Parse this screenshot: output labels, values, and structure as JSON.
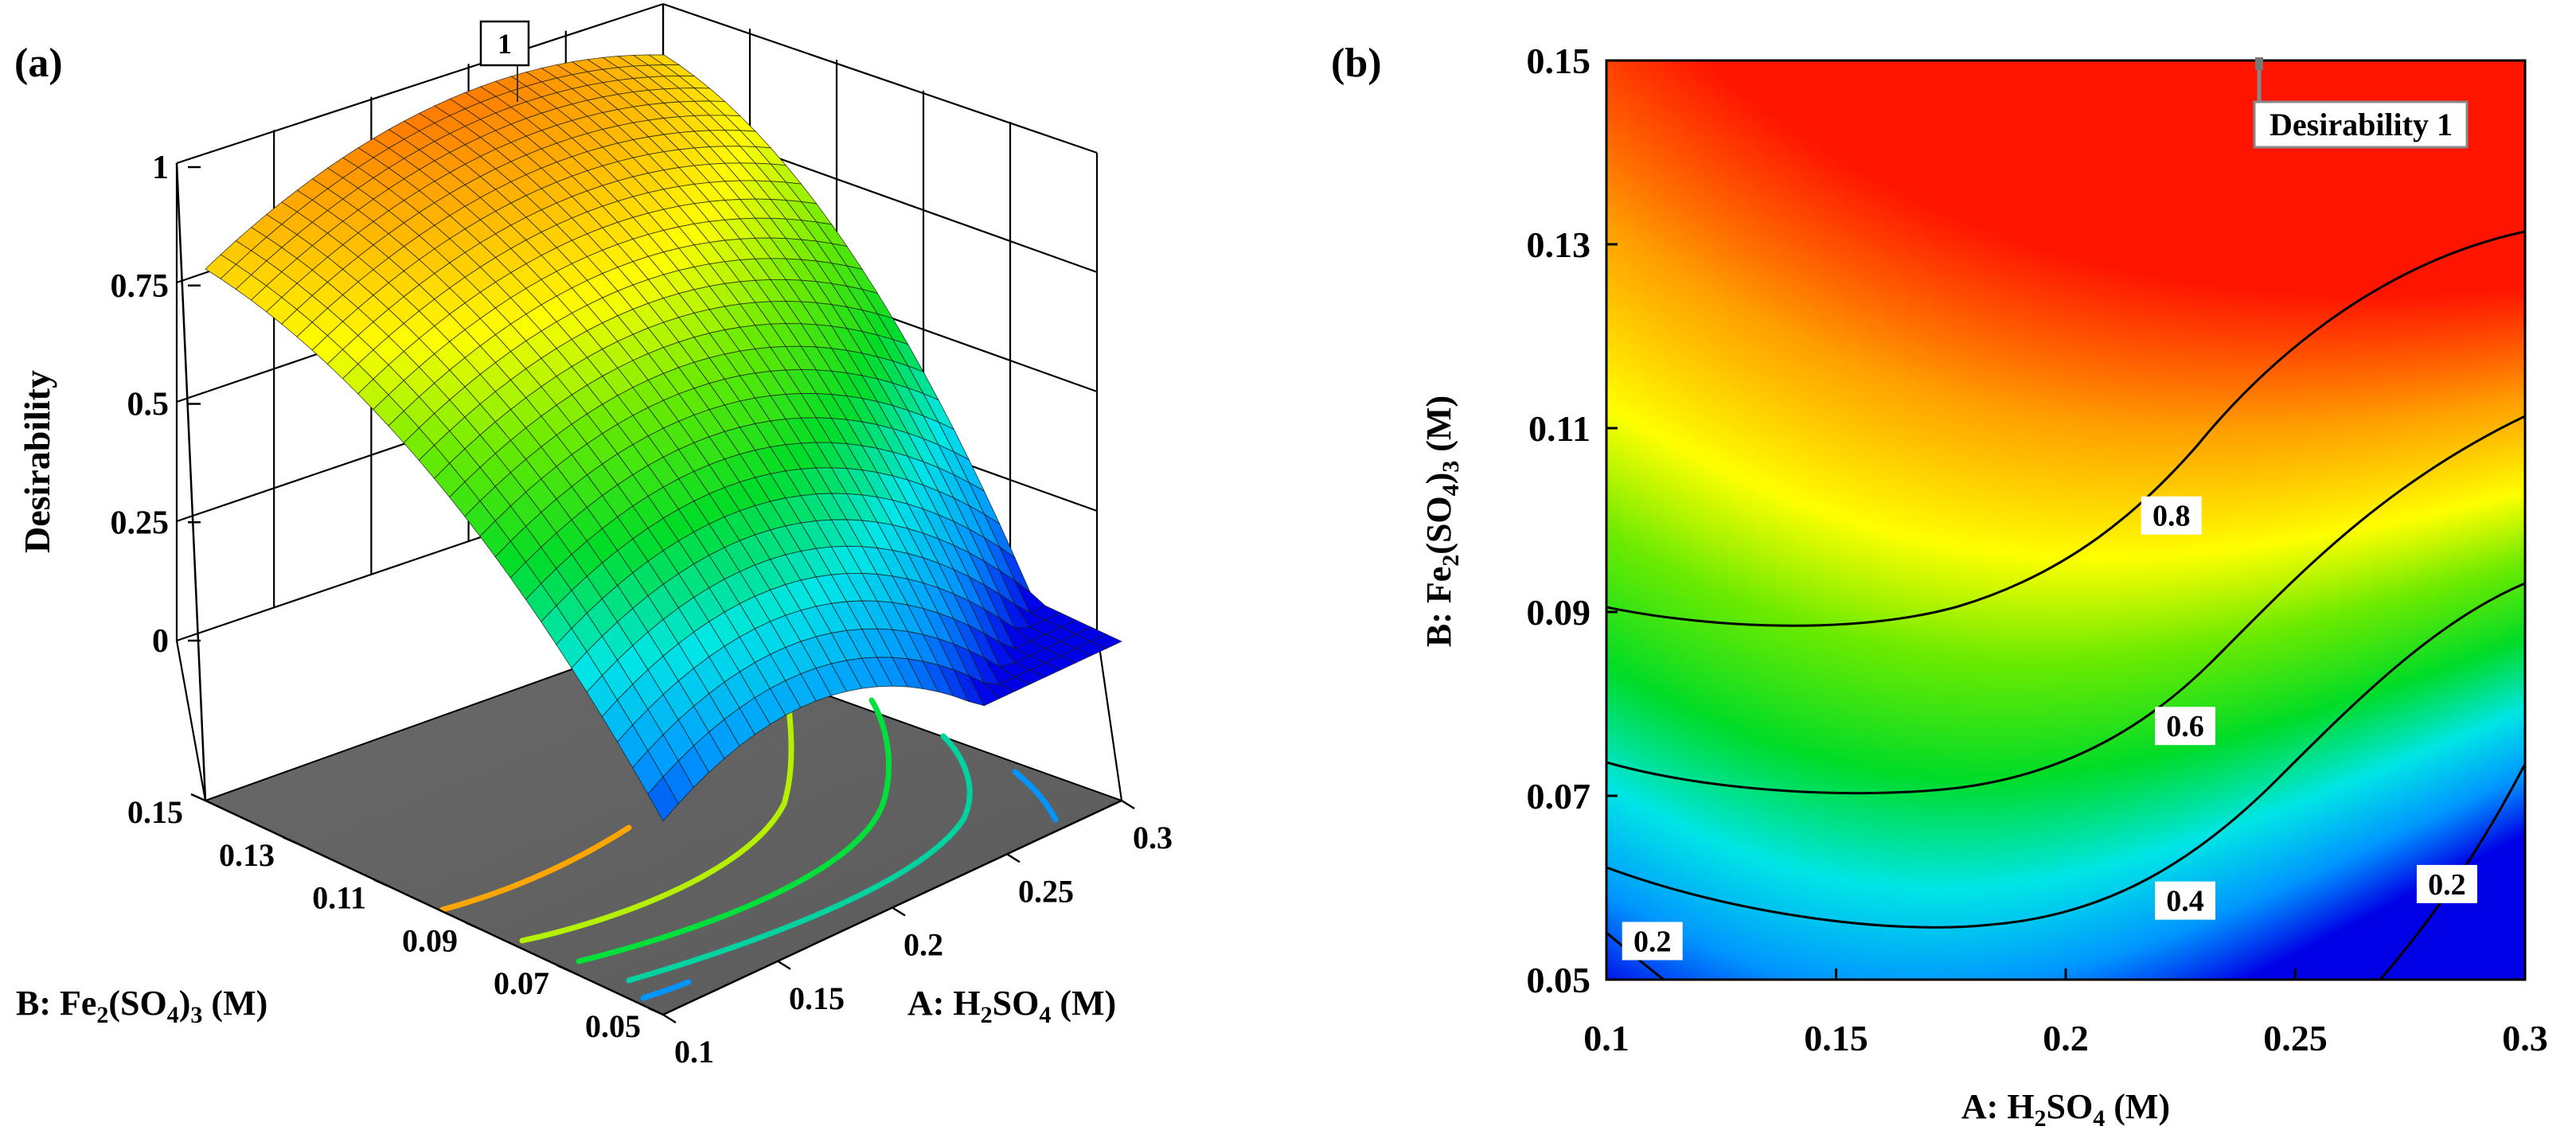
{
  "chart_data": [
    {
      "panel_label": "(a)",
      "type": "surface3d",
      "zlabel": "Desirability",
      "z_ticks": [
        "0",
        "0.25",
        "0.5",
        "0.75",
        "1"
      ],
      "zlim": [
        0,
        1
      ],
      "xlabel_parts": [
        "A: H",
        "2",
        "SO",
        "4",
        " (M)"
      ],
      "x_ticks": [
        "0.1",
        "0.15",
        "0.2",
        "0.25",
        "0.3"
      ],
      "xlim": [
        0.1,
        0.3
      ],
      "ylabel_parts": [
        "B: Fe",
        "2",
        "(SO",
        "4",
        ")",
        "3",
        " (M)"
      ],
      "y_ticks": [
        "0.05",
        "0.07",
        "0.09",
        "0.11",
        "0.13",
        "0.15"
      ],
      "ylim": [
        0.05,
        0.15
      ],
      "max_flag": "1",
      "floor_contour_levels": [
        0.2,
        0.4,
        0.6,
        0.8
      ]
    },
    {
      "panel_label": "(b)",
      "type": "contour",
      "xlabel_parts": [
        "A: H",
        "2",
        "SO",
        "4",
        " (M)"
      ],
      "x_ticks": [
        "0.1",
        "0.15",
        "0.2",
        "0.25",
        "0.3"
      ],
      "xlim": [
        0.1,
        0.3
      ],
      "ylabel_parts": [
        "B: Fe",
        "2",
        "(SO",
        "4",
        ")",
        "3",
        " (M)"
      ],
      "y_ticks": [
        "0.05",
        "0.07",
        "0.09",
        "0.11",
        "0.13",
        "0.15"
      ],
      "ylim": [
        0.05,
        0.15
      ],
      "contour_levels": [
        "0.2",
        "0.4",
        "0.6",
        "0.8"
      ],
      "contour_label_positions": [
        {
          "text": "0.8",
          "a": 0.223,
          "b": 0.1005
        },
        {
          "text": "0.6",
          "a": 0.226,
          "b": 0.0776
        },
        {
          "text": "0.4",
          "a": 0.226,
          "b": 0.0586
        },
        {
          "text": "0.2",
          "a": 0.11,
          "b": 0.0542
        },
        {
          "text": "0.2",
          "a": 0.283,
          "b": 0.0604
        }
      ],
      "optimum_point": {
        "a": 0.24,
        "b": 0.15
      },
      "annotation": "Desirability 1"
    }
  ]
}
